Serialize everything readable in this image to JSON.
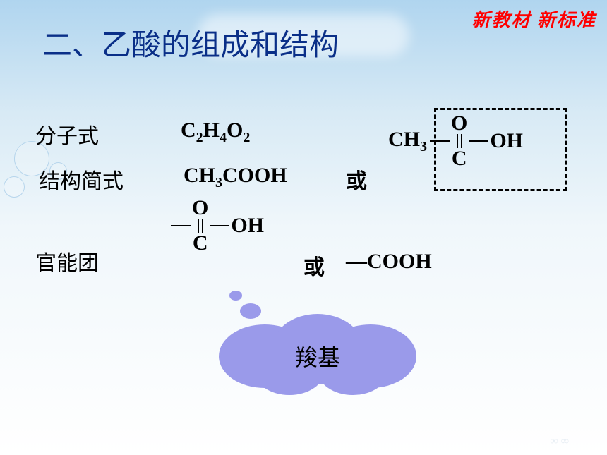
{
  "watermark": "新教材 新标准",
  "title": "二、乙酸的组成和结构",
  "labels": {
    "molecular": "分子式",
    "structural": "结构简式",
    "functional": "官能团"
  },
  "formula": {
    "text_parts": [
      "C",
      "2",
      "H",
      "4",
      "O",
      "2"
    ]
  },
  "structural": {
    "simple": "CH",
    "simple_sub": "3",
    "simple_tail": "COOH",
    "or": "或",
    "ch3": "CH",
    "ch3_sub": "3",
    "C": "C",
    "O": "O",
    "OH": "OH"
  },
  "functional": {
    "C": "C",
    "O": "O",
    "OH": "OH",
    "or": "或",
    "cooh": "—COOH"
  },
  "callout": "羧基",
  "colors": {
    "title": "#0a2f88",
    "watermark": "#ff0000",
    "cloud": "#9a9aea"
  }
}
